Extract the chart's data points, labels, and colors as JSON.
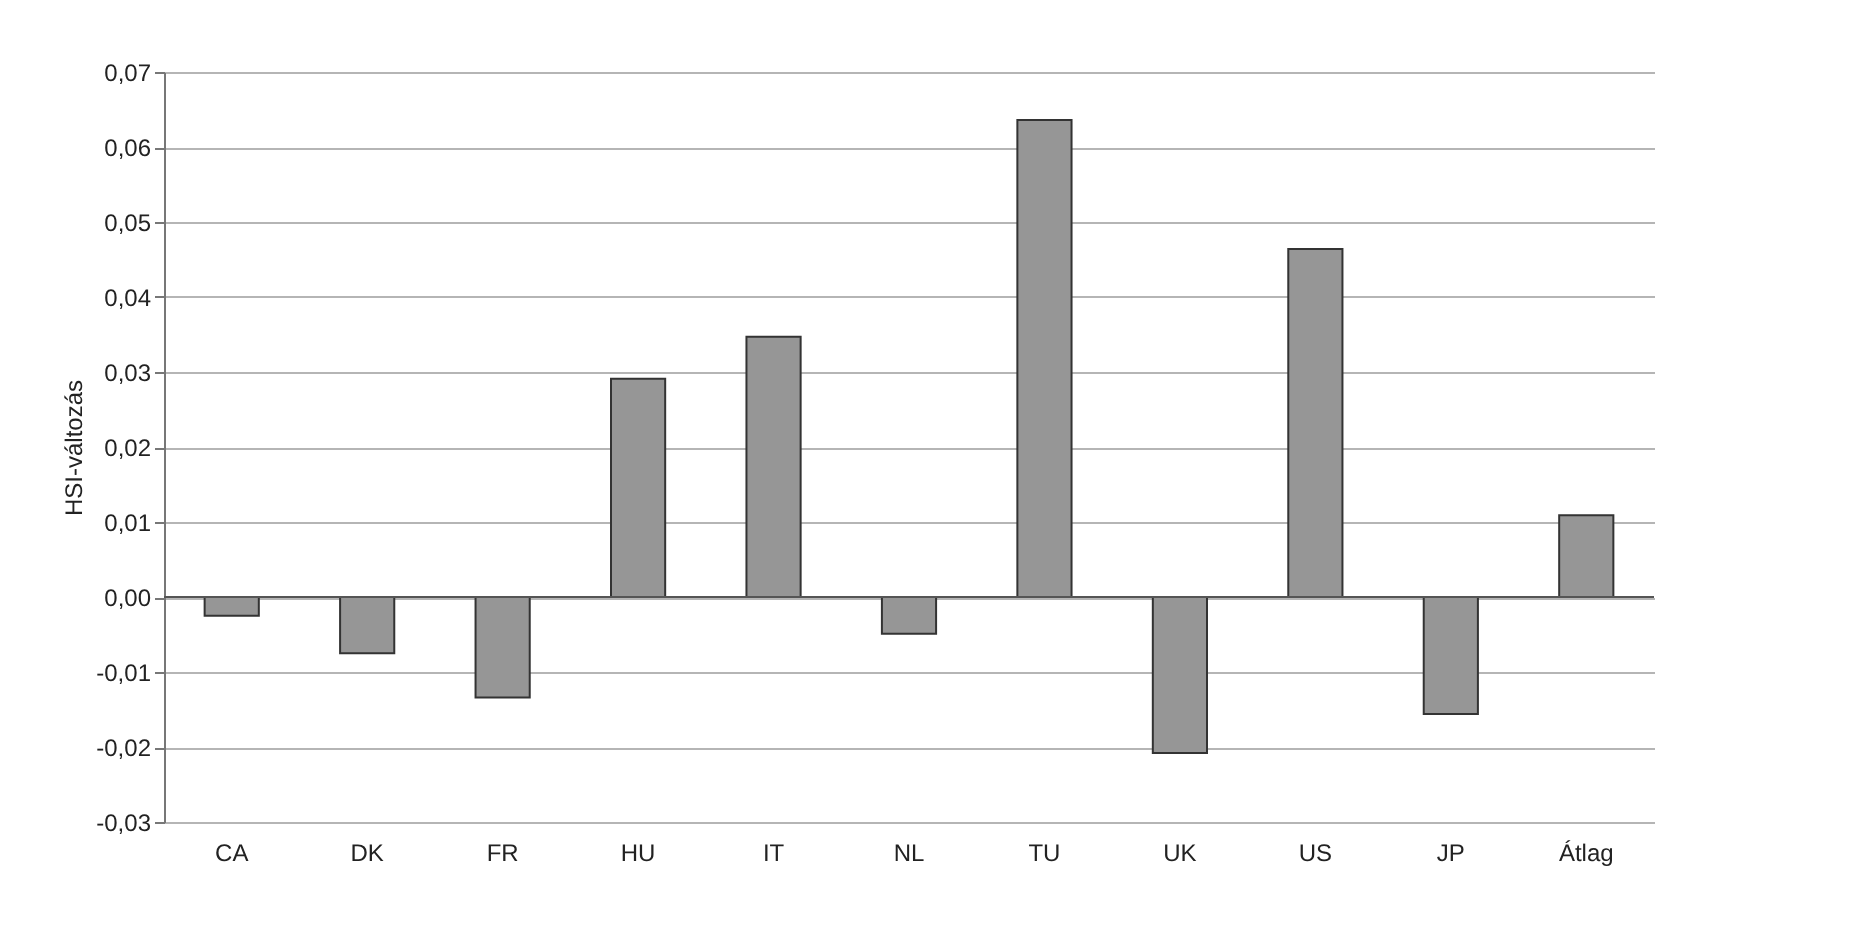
{
  "chart_data": {
    "type": "bar",
    "ylabel": "HSI-változás",
    "categories": [
      "CA",
      "DK",
      "FR",
      "HU",
      "IT",
      "NL",
      "TU",
      "UK",
      "US",
      "JP",
      "Átlag"
    ],
    "values": [
      -0.0025,
      -0.0075,
      -0.0134,
      0.0291,
      0.0347,
      -0.0049,
      0.0636,
      -0.0208,
      0.0464,
      -0.0156,
      0.0109
    ],
    "color": "#969696",
    "ylim": [
      -0.03,
      0.07
    ],
    "yticks": [
      {
        "value": -0.03,
        "label": "-0,03"
      },
      {
        "value": -0.02,
        "label": "-0,02"
      },
      {
        "value": -0.01,
        "label": "-0,01"
      },
      {
        "value": 0,
        "label": "0,00"
      },
      {
        "value": 0.01,
        "label": "0,01"
      },
      {
        "value": 0.02,
        "label": "0,02"
      },
      {
        "value": 0.03,
        "label": "0,03"
      },
      {
        "value": 0.04,
        "label": "0,04"
      },
      {
        "value": 0.05,
        "label": "0,05"
      },
      {
        "value": 0.06,
        "label": "0,06"
      },
      {
        "value": 0.07,
        "label": "0,07"
      }
    ],
    "grid": "y"
  }
}
